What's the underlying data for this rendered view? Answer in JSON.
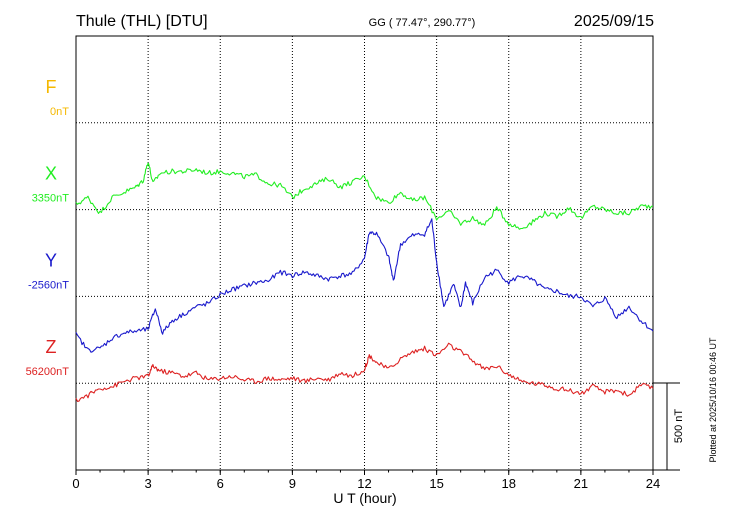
{
  "header": {
    "station": "Thule (THL)  [DTU]",
    "coords": "GG ( 77.47°, 290.77°)",
    "date": "2025/09/15"
  },
  "footer": {
    "plotted": "Plotted at 2025/10/16 00:46 UT"
  },
  "chart_data": {
    "type": "line",
    "xlabel": "U T (hour)",
    "xlim": [
      0,
      24
    ],
    "xticks": [
      "0",
      "3",
      "6",
      "9",
      "12",
      "15",
      "18",
      "21",
      "24"
    ],
    "scale_bar_label": "500 nT",
    "nt_per_division": 500,
    "series": [
      {
        "name": "F",
        "baseline": "0nT",
        "color": "#f5b800",
        "x": [],
        "values": []
      },
      {
        "name": "X",
        "baseline": "3350nT",
        "color": "#22ee22",
        "x": [
          0,
          0.5,
          1,
          1.5,
          2,
          2.5,
          2.8,
          3,
          3.2,
          3.5,
          4,
          4.5,
          5,
          5.5,
          6,
          6.5,
          7,
          7.5,
          8,
          8.5,
          9,
          9.5,
          10,
          10.5,
          11,
          11.5,
          12,
          12.5,
          13,
          13.5,
          14,
          14.5,
          15,
          15.5,
          16,
          16.5,
          17,
          17.5,
          18,
          18.5,
          19,
          19.5,
          20,
          20.5,
          21,
          21.5,
          22,
          22.5,
          23,
          23.5,
          24
        ],
        "values": [
          3380,
          3420,
          3330,
          3420,
          3450,
          3480,
          3520,
          3630,
          3500,
          3560,
          3570,
          3570,
          3580,
          3560,
          3570,
          3560,
          3540,
          3550,
          3500,
          3490,
          3420,
          3470,
          3500,
          3530,
          3480,
          3510,
          3540,
          3420,
          3390,
          3450,
          3400,
          3420,
          3300,
          3340,
          3270,
          3300,
          3260,
          3360,
          3270,
          3240,
          3280,
          3330,
          3310,
          3360,
          3300,
          3370,
          3350,
          3330,
          3330,
          3370,
          3370
        ]
      },
      {
        "name": "Y",
        "baseline": "-2560nT",
        "color": "#1a1acc",
        "x": [
          0,
          0.5,
          1,
          1.5,
          2,
          2.5,
          3,
          3.3,
          3.6,
          4,
          4.5,
          5,
          5.5,
          6,
          6.5,
          7,
          7.5,
          8,
          8.5,
          9,
          9.5,
          10,
          10.5,
          11,
          11.5,
          12,
          12.2,
          12.5,
          13,
          13.2,
          13.5,
          14,
          14.5,
          14.8,
          15,
          15.3,
          15.7,
          16,
          16.2,
          16.5,
          17,
          17.5,
          18,
          18.5,
          19,
          19.5,
          20,
          20.5,
          21,
          21.5,
          22,
          22.5,
          23,
          23.5,
          24
        ],
        "values": [
          -2780,
          -2870,
          -2860,
          -2800,
          -2770,
          -2760,
          -2750,
          -2630,
          -2770,
          -2700,
          -2660,
          -2620,
          -2600,
          -2550,
          -2520,
          -2500,
          -2480,
          -2470,
          -2420,
          -2440,
          -2420,
          -2440,
          -2460,
          -2440,
          -2430,
          -2340,
          -2190,
          -2200,
          -2330,
          -2470,
          -2260,
          -2210,
          -2200,
          -2120,
          -2360,
          -2620,
          -2490,
          -2630,
          -2480,
          -2600,
          -2450,
          -2410,
          -2480,
          -2440,
          -2470,
          -2520,
          -2530,
          -2560,
          -2560,
          -2620,
          -2570,
          -2680,
          -2620,
          -2700,
          -2760
        ]
      },
      {
        "name": "Z",
        "baseline": "56200nT",
        "color": "#dd2222",
        "x": [
          0,
          0.5,
          1,
          1.5,
          2,
          2.5,
          3,
          3.2,
          3.5,
          4,
          4.5,
          5,
          5.5,
          6,
          6.5,
          7,
          7.5,
          8,
          8.5,
          9,
          9.5,
          10,
          10.5,
          11,
          11.5,
          12,
          12.2,
          12.5,
          13,
          13.5,
          14,
          14.5,
          15,
          15.5,
          16,
          16.5,
          17,
          17.5,
          18,
          18.5,
          19,
          19.5,
          20,
          20.5,
          21,
          21.5,
          22,
          22.5,
          23,
          23.5,
          24
        ],
        "values": [
          56100,
          56130,
          56170,
          56180,
          56210,
          56230,
          56240,
          56300,
          56270,
          56260,
          56240,
          56260,
          56220,
          56230,
          56240,
          56220,
          56210,
          56230,
          56220,
          56230,
          56210,
          56230,
          56220,
          56260,
          56240,
          56280,
          56360,
          56320,
          56280,
          56340,
          56380,
          56400,
          56360,
          56420,
          56380,
          56330,
          56280,
          56300,
          56250,
          56210,
          56200,
          56190,
          56170,
          56160,
          56140,
          56180,
          56150,
          56160,
          56130,
          56190,
          56170
        ]
      }
    ]
  }
}
